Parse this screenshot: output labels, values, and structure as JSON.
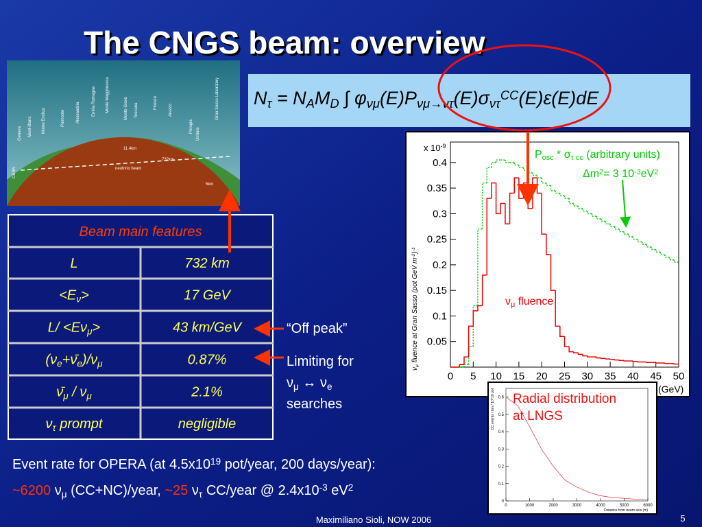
{
  "title": "The CNGS beam: overview",
  "map": {
    "labels": [
      "Geneva",
      "Mont-Blanc",
      "Monte Emilius",
      "Piemonte",
      "Alessandria",
      "Emilia Romagna",
      "Monte Maggiorasca",
      "Monte Giovo",
      "Toscana",
      "Firenze",
      "Arezzo",
      "Perugia",
      "Umbria",
      "Gran Sasso Laboratory",
      "CERN",
      "11.4km",
      "732km",
      "neutrino beam",
      "5km"
    ]
  },
  "formula": [
    {
      "text": "N"
    },
    {
      "text": "τ",
      "style": "sub"
    },
    {
      "text": " = N"
    },
    {
      "text": "A",
      "style": "sub"
    },
    {
      "text": "M"
    },
    {
      "text": "D",
      "style": "sub"
    },
    {
      "text": " ∫ φ"
    },
    {
      "text": "νμ",
      "style": "sub"
    },
    {
      "text": "(E)P"
    },
    {
      "text": "νμ→ντ",
      "style": "sub"
    },
    {
      "text": "(E)σ"
    },
    {
      "text": "ντ",
      "style": "sub"
    },
    {
      "text": "CC",
      "style": "sup"
    },
    {
      "text": "(E)ε(E)dE"
    }
  ],
  "table": {
    "title": "Beam main features",
    "rows": [
      [
        [
          {
            "text": "L"
          }
        ],
        [
          {
            "text": "732 km"
          }
        ]
      ],
      [
        [
          {
            "text": "<E"
          },
          {
            "text": "ν",
            "style": "sub"
          },
          {
            "text": ">"
          }
        ],
        [
          {
            "text": "17 GeV"
          }
        ]
      ],
      [
        [
          {
            "text": "L/ <Eν"
          },
          {
            "text": "μ",
            "style": "sub"
          },
          {
            "text": ">"
          }
        ],
        [
          {
            "text": "43 km/GeV"
          }
        ]
      ],
      [
        [
          {
            "text": "(ν"
          },
          {
            "text": "e",
            "style": "sub"
          },
          {
            "text": "+ν̄"
          },
          {
            "text": "e",
            "style": "sub"
          },
          {
            "text": ")/ν"
          },
          {
            "text": "μ",
            "style": "sub"
          }
        ],
        [
          {
            "text": "0.87%"
          }
        ]
      ],
      [
        [
          {
            "text": "ν̄"
          },
          {
            "text": "μ",
            "style": "sub"
          },
          {
            "text": " / ν"
          },
          {
            "text": "μ",
            "style": "sub"
          }
        ],
        [
          {
            "text": "2.1%"
          }
        ]
      ],
      [
        [
          {
            "text": "ν"
          },
          {
            "text": "τ",
            "style": "sub"
          },
          {
            "text": " prompt"
          }
        ],
        [
          {
            "text": "negligible"
          }
        ]
      ]
    ]
  },
  "annotations": {
    "off_peak": "“Off peak”",
    "limiting": [
      [
        {
          "text": "Limiting for"
        }
      ],
      [
        {
          "text": "ν"
        },
        {
          "text": "μ",
          "style": "sub"
        },
        {
          "text": " ↔ ν"
        },
        {
          "text": "e",
          "style": "sub"
        }
      ],
      [
        {
          "text": "searches"
        }
      ]
    ]
  },
  "fluence_plot": {
    "type": "histogram",
    "y_label": [
      {
        "text": "ν"
      },
      {
        "text": "μ",
        "style": "sub"
      },
      {
        "text": " fluence at Gran Sasso (pot GeV m"
      },
      {
        "text": "-2",
        "style": "sup"
      },
      {
        "text": ")"
      },
      {
        "text": "-1",
        "style": "sup"
      }
    ],
    "y_multiplier": [
      {
        "text": "x 10"
      },
      {
        "text": "-9",
        "style": "sup"
      }
    ],
    "x_unit": "(GeV)",
    "xlim": [
      0,
      50
    ],
    "ylim": [
      0,
      0.44
    ],
    "xticks": [
      0,
      5,
      10,
      15,
      20,
      25,
      30,
      35,
      40,
      45,
      50
    ],
    "yticks": [
      0.05,
      0.1,
      0.15,
      0.2,
      0.25,
      0.3,
      0.35,
      0.4
    ],
    "bins": [
      0,
      1,
      2,
      3,
      4,
      5,
      6,
      7,
      8,
      9,
      10,
      11,
      12,
      13,
      14,
      15,
      16,
      17,
      18,
      19,
      20,
      21,
      22,
      23,
      24,
      25,
      26,
      27,
      28,
      29,
      30,
      31,
      32,
      33,
      34,
      35,
      36,
      37,
      38,
      39,
      40,
      41,
      42,
      43,
      44,
      45,
      46,
      47,
      48,
      49,
      50
    ],
    "series": [
      {
        "name": [
          {
            "text": "P"
          },
          {
            "text": "osc",
            "style": "sub"
          },
          {
            "text": " * σ"
          },
          {
            "text": "τ cc",
            "style": "sub"
          },
          {
            "text": " (arbitrary units)"
          }
        ],
        "color": "#00cc00",
        "dashed": true,
        "values": [
          0,
          0,
          0,
          0.005,
          0.04,
          0.12,
          0.27,
          0.36,
          0.39,
          0.4,
          0.405,
          0.405,
          0.4,
          0.4,
          0.395,
          0.39,
          0.385,
          0.38,
          0.375,
          0.37,
          0.36,
          0.355,
          0.345,
          0.34,
          0.335,
          0.33,
          0.32,
          0.315,
          0.31,
          0.305,
          0.3,
          0.295,
          0.29,
          0.285,
          0.28,
          0.275,
          0.27,
          0.265,
          0.26,
          0.255,
          0.25,
          0.245,
          0.24,
          0.235,
          0.23,
          0.225,
          0.22,
          0.215,
          0.21,
          0.205
        ]
      },
      {
        "name": [
          {
            "text": "ν"
          },
          {
            "text": "μ",
            "style": "sub"
          },
          {
            "text": " fluence"
          }
        ],
        "color": "#ee0000",
        "dashed": false,
        "values": [
          0,
          0,
          0.005,
          0.02,
          0.08,
          0.11,
          0.12,
          0.18,
          0.33,
          0.36,
          0.3,
          0.32,
          0.28,
          0.34,
          0.37,
          0.33,
          0.36,
          0.31,
          0.37,
          0.34,
          0.26,
          0.22,
          0.15,
          0.08,
          0.06,
          0.04,
          0.03,
          0.028,
          0.025,
          0.022,
          0.02,
          0.02,
          0.018,
          0.017,
          0.016,
          0.015,
          0.014,
          0.013,
          0.012,
          0.012,
          0.011,
          0.01,
          0.01,
          0.009,
          0.009,
          0.008,
          0.008,
          0.007,
          0.007,
          0.006
        ]
      }
    ],
    "dm2": [
      {
        "text": "Δm"
      },
      {
        "text": "2",
        "style": "sup"
      },
      {
        "text": "= 3 10"
      },
      {
        "text": "-3",
        "style": "sup"
      },
      {
        "text": "eV"
      },
      {
        "text": "2",
        "style": "sup"
      }
    ]
  },
  "radial_plot": {
    "type": "line",
    "title": [
      "Radial distribution",
      "at LNGS"
    ],
    "y_label": "CC events / ton / 10^19 pot",
    "x_label": "Distance from beam axis (m)",
    "xlim": [
      0,
      6000
    ],
    "ylim": [
      0,
      0.65
    ],
    "xticks": [
      0,
      1000,
      2000,
      3000,
      4000,
      5000,
      6000
    ],
    "yticks": [
      0,
      0.1,
      0.2,
      0.3,
      0.4,
      0.5,
      0.6
    ],
    "x": [
      0,
      500,
      1000,
      1500,
      2000,
      2500,
      3000,
      3500,
      4000,
      4500,
      5000,
      5500,
      6000
    ],
    "series": [
      {
        "color": "#dd4444",
        "values": [
          0.6,
          0.55,
          0.43,
          0.3,
          0.2,
          0.12,
          0.08,
          0.05,
          0.03,
          0.02,
          0.015,
          0.01,
          0.008
        ]
      }
    ]
  },
  "event_rate": [
    [
      {
        "text": "Event rate for OPERA (at 4.5x10"
      },
      {
        "text": "19",
        "style": "sup"
      },
      {
        "text": " pot/year, 200 days/year):"
      }
    ],
    [
      {
        "text": "~6200",
        "style": "hl"
      },
      {
        "text": " ν"
      },
      {
        "text": "μ",
        "style": "sub"
      },
      {
        "text": " (CC+NC)/year, "
      },
      {
        "text": "~25",
        "style": "hl"
      },
      {
        "text": " ν"
      },
      {
        "text": "τ",
        "style": "sub"
      },
      {
        "text": " CC/year @ 2.4x10"
      },
      {
        "text": "-3",
        "style": "sup"
      },
      {
        "text": " eV"
      },
      {
        "text": "2",
        "style": "sup"
      }
    ]
  ],
  "footer": {
    "author": "Maximiliano Sioli, NOW 2006",
    "page": "5"
  }
}
